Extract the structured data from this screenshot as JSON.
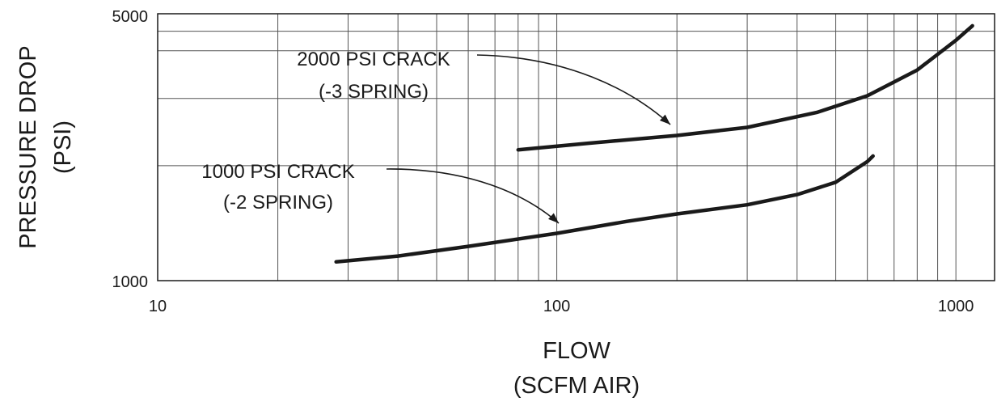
{
  "chart_data": {
    "type": "line",
    "title": "",
    "xlabel": [
      "FLOW",
      "(SCFM AIR)"
    ],
    "ylabel": [
      "PRESSURE DROP",
      "(PSI)"
    ],
    "x_scale": "log",
    "y_scale": "log",
    "xlim": [
      10,
      1250
    ],
    "ylim": [
      1000,
      5000
    ],
    "x_tick_labels": [
      "10",
      "100",
      "1000"
    ],
    "y_tick_labels": [
      "1000",
      "5000"
    ],
    "grid": true,
    "series": [
      {
        "name": "2000 PSI CRACK (-3 SPRING)",
        "label_lines": [
          "2000 PSI CRACK",
          "(-3 SPRING)"
        ],
        "points": [
          [
            80,
            2200
          ],
          [
            120,
            2290
          ],
          [
            200,
            2400
          ],
          [
            300,
            2520
          ],
          [
            450,
            2760
          ],
          [
            600,
            3050
          ],
          [
            800,
            3560
          ],
          [
            1000,
            4260
          ],
          [
            1100,
            4650
          ]
        ]
      },
      {
        "name": "1000 PSI CRACK (-2 SPRING)",
        "label_lines": [
          "1000 PSI CRACK",
          "(-2 SPRING)"
        ],
        "points": [
          [
            28,
            1120
          ],
          [
            40,
            1160
          ],
          [
            60,
            1230
          ],
          [
            100,
            1330
          ],
          [
            150,
            1430
          ],
          [
            200,
            1495
          ],
          [
            300,
            1580
          ],
          [
            400,
            1680
          ],
          [
            500,
            1810
          ],
          [
            600,
            2050
          ],
          [
            620,
            2120
          ]
        ]
      }
    ]
  }
}
